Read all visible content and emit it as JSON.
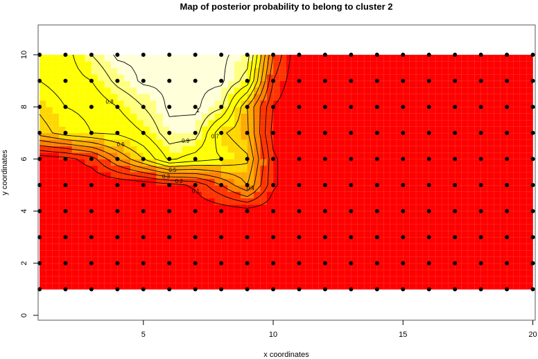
{
  "chart_data": {
    "type": "heatmap",
    "title": "Map of posterior probability to belong to cluster  2",
    "xlabel": "x coordinates",
    "ylabel": "y coordinates",
    "xlim": [
      1,
      20
    ],
    "ylim": [
      0,
      10
    ],
    "xticks": [
      "5",
      "10",
      "15",
      "20"
    ],
    "xtick_values": [
      5,
      10,
      15,
      20
    ],
    "yticks": [
      "0",
      "2",
      "4",
      "6",
      "8",
      "10"
    ],
    "ytick_values": [
      0,
      2,
      4,
      6,
      8,
      10
    ],
    "points_x": [
      1,
      2,
      3,
      4,
      5,
      6,
      7,
      8,
      9,
      10,
      11,
      12,
      13,
      14,
      15,
      16,
      17,
      18,
      19,
      20
    ],
    "points_y": [
      1,
      2,
      3,
      4,
      5,
      6,
      7,
      8,
      9,
      10
    ],
    "probability_grid_rows_y1_to_y10": [
      [
        0,
        0,
        0,
        0,
        0,
        0,
        0,
        0,
        0,
        0,
        0,
        0,
        0,
        0,
        0,
        0,
        0,
        0,
        0,
        0
      ],
      [
        0,
        0,
        0,
        0,
        0,
        0,
        0,
        0,
        0,
        0,
        0,
        0,
        0,
        0,
        0,
        0,
        0,
        0,
        0,
        0
      ],
      [
        0,
        0,
        0,
        0,
        0,
        0,
        0,
        0,
        0,
        0,
        0,
        0,
        0,
        0,
        0,
        0,
        0,
        0,
        0,
        0
      ],
      [
        0,
        0,
        0,
        0,
        0,
        0,
        0.02,
        0.03,
        0.05,
        0.03,
        0,
        0,
        0,
        0,
        0,
        0,
        0,
        0,
        0,
        0
      ],
      [
        0,
        0,
        0,
        0,
        0.02,
        0.06,
        0.12,
        0.3,
        0.5,
        0.12,
        0,
        0,
        0,
        0,
        0,
        0,
        0,
        0,
        0,
        0
      ],
      [
        0.03,
        0.06,
        0.15,
        0.4,
        0.6,
        0.82,
        0.75,
        0.7,
        0.62,
        0.12,
        0,
        0,
        0,
        0,
        0,
        0,
        0,
        0,
        0,
        0
      ],
      [
        0.55,
        0.65,
        0.7,
        0.72,
        0.8,
        0.96,
        0.95,
        0.62,
        0.52,
        0.06,
        0,
        0,
        0,
        0,
        0,
        0,
        0,
        0,
        0,
        0
      ],
      [
        0.62,
        0.7,
        0.72,
        0.8,
        0.9,
        1,
        1,
        0.92,
        0.5,
        0.1,
        0,
        0,
        0,
        0,
        0,
        0,
        0,
        0,
        0,
        0
      ],
      [
        0.7,
        0.75,
        0.8,
        0.93,
        1,
        1,
        1,
        1,
        0.86,
        0.2,
        0,
        0,
        0,
        0,
        0,
        0,
        0,
        0,
        0,
        0
      ],
      [
        0.7,
        0.76,
        0.9,
        1,
        1,
        1,
        1,
        1,
        0.95,
        0.3,
        0,
        0,
        0,
        0,
        0,
        0,
        0,
        0,
        0,
        0
      ]
    ],
    "contour_levels": [
      0.1,
      0.2,
      0.3,
      0.4,
      0.5,
      0.6,
      0.7,
      0.8,
      0.9,
      1
    ],
    "contour_labels": [
      "0.1",
      "0.2",
      "0.3",
      "0.4",
      "0.5",
      "0.6",
      "0.7",
      "0.8",
      "0.9",
      "1"
    ],
    "colors": {
      "low": "#FF0000",
      "mid_low": "#FF3300",
      "mid": "#FF8000",
      "mid_high": "#FFAA00",
      "high_low": "#FFD700",
      "high": "#FFFF00",
      "very_high": "#FFFF80",
      "max": "#FFFFDA",
      "points": "#000000"
    },
    "grid": false,
    "legend": "none"
  }
}
